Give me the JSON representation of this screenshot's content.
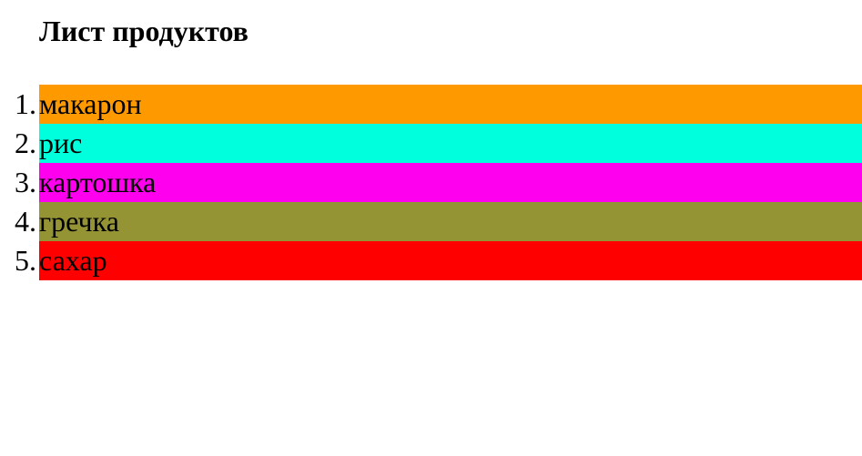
{
  "title": "Лист продуктов",
  "items": [
    {
      "number": "1.",
      "label": "макарон",
      "color": "#FF9900"
    },
    {
      "number": "2.",
      "label": "рис",
      "color": "#00FFDD"
    },
    {
      "number": "3.",
      "label": "картошка",
      "color": "#FF00EE"
    },
    {
      "number": "4.",
      "label": "гречка",
      "color": "#949434"
    },
    {
      "number": "5.",
      "label": "сахар",
      "color": "#FF0000"
    }
  ]
}
